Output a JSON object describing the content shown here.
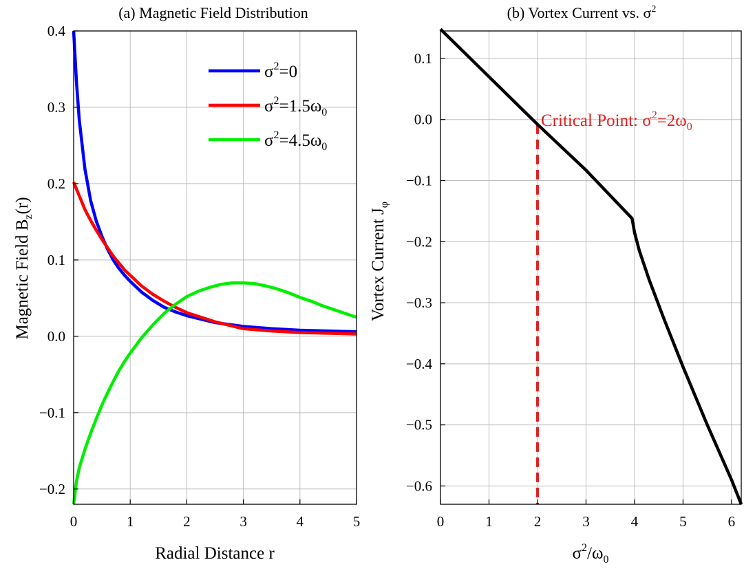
{
  "chart_data": [
    {
      "type": "line",
      "title": "(a) Magnetic Field Distribution",
      "xlabel": "Radial Distance r",
      "ylabel": "Magnetic Field B_z(r)",
      "xlim": [
        0,
        5
      ],
      "ylim": [
        -0.22,
        0.4
      ],
      "xticks": [
        0,
        1,
        2,
        3,
        4,
        5
      ],
      "yticks": [
        -0.2,
        -0.1,
        0.0,
        0.1,
        0.2,
        0.3,
        0.4
      ],
      "xtick_labels": [
        "0",
        "1",
        "2",
        "3",
        "4",
        "5"
      ],
      "ytick_labels": [
        "−0.2",
        "−0.1",
        "0.0",
        "0.1",
        "0.2",
        "0.3",
        "0.4"
      ],
      "grid": true,
      "legend_position": "top-right",
      "series": [
        {
          "name": "σ²=0",
          "name_base": "σ",
          "name_sup": "2",
          "name_rest": "=0",
          "name_sub": "",
          "color": "#0000ff",
          "x": [
            0,
            0.05,
            0.1,
            0.2,
            0.3,
            0.4,
            0.5,
            0.6,
            0.7,
            0.8,
            0.9,
            1.0,
            1.2,
            1.4,
            1.6,
            1.8,
            2.0,
            2.5,
            3.0,
            3.5,
            4.0,
            4.5,
            5.0
          ],
          "y": [
            0.4,
            0.333,
            0.283,
            0.219,
            0.178,
            0.151,
            0.131,
            0.114,
            0.1,
            0.089,
            0.08,
            0.072,
            0.058,
            0.047,
            0.038,
            0.032,
            0.027,
            0.018,
            0.013,
            0.01,
            0.008,
            0.007,
            0.006
          ]
        },
        {
          "name": "σ²=1.5ω₀",
          "name_base": "σ",
          "name_sup": "2",
          "name_rest": "=1.5ω",
          "name_sub": "0",
          "color": "#ff0000",
          "x": [
            0,
            0.1,
            0.2,
            0.3,
            0.4,
            0.5,
            0.6,
            0.7,
            0.8,
            0.9,
            1.0,
            1.2,
            1.4,
            1.6,
            1.8,
            2.0,
            2.5,
            3.0,
            3.5,
            4.0,
            4.5,
            5.0
          ],
          "y": [
            0.202,
            0.184,
            0.166,
            0.152,
            0.139,
            0.127,
            0.116,
            0.105,
            0.096,
            0.087,
            0.08,
            0.066,
            0.055,
            0.046,
            0.038,
            0.031,
            0.019,
            0.01,
            0.007,
            0.005,
            0.004,
            0.003
          ]
        },
        {
          "name": "σ²=4.5ω₀",
          "name_base": "σ",
          "name_sup": "2",
          "name_rest": "=4.5ω",
          "name_sub": "0",
          "color": "#00ee00",
          "x": [
            0,
            0.05,
            0.1,
            0.2,
            0.3,
            0.4,
            0.5,
            0.6,
            0.7,
            0.8,
            0.9,
            1.0,
            1.2,
            1.4,
            1.6,
            1.8,
            2.0,
            2.2,
            2.4,
            2.6,
            2.8,
            3.0,
            3.2,
            3.4,
            3.6,
            3.8,
            4.0,
            4.2,
            4.4,
            4.6,
            4.8,
            5.0
          ],
          "y": [
            -0.22,
            -0.19,
            -0.172,
            -0.148,
            -0.127,
            -0.108,
            -0.09,
            -0.074,
            -0.059,
            -0.045,
            -0.033,
            -0.022,
            -0.002,
            0.015,
            0.03,
            0.042,
            0.052,
            0.059,
            0.064,
            0.068,
            0.07,
            0.07,
            0.069,
            0.066,
            0.062,
            0.057,
            0.051,
            0.046,
            0.04,
            0.035,
            0.03,
            0.025
          ]
        }
      ]
    },
    {
      "type": "line",
      "title_base": "(b) Vortex Current vs. σ",
      "title_sup": "2",
      "xlabel_base": "σ",
      "xlabel_sup": "2",
      "xlabel_rest": "/ω",
      "xlabel_sub": "0",
      "ylabel_base": "Vortex Current J",
      "ylabel_sub": "φ",
      "xlim": [
        0,
        6.2
      ],
      "ylim": [
        -0.63,
        0.145
      ],
      "xticks": [
        0,
        1,
        2,
        3,
        4,
        5,
        6
      ],
      "yticks": [
        -0.6,
        -0.5,
        -0.4,
        -0.3,
        -0.2,
        -0.1,
        0.0,
        0.1
      ],
      "xtick_labels": [
        "0",
        "1",
        "2",
        "3",
        "4",
        "5",
        "6"
      ],
      "ytick_labels": [
        "−0.6",
        "−0.5",
        "−0.4",
        "−0.3",
        "−0.2",
        "−0.1",
        "0.0",
        "0.1"
      ],
      "grid": true,
      "series": [
        {
          "color": "#000000",
          "x": [
            0,
            1,
            2,
            3,
            3.95,
            4.0,
            4.1,
            4.3,
            4.6,
            5.0,
            5.5,
            6.0,
            6.2
          ],
          "y": [
            0.148,
            0.07,
            -0.008,
            -0.083,
            -0.162,
            -0.185,
            -0.215,
            -0.262,
            -0.325,
            -0.405,
            -0.5,
            -0.59,
            -0.63
          ]
        }
      ],
      "annotation": {
        "x": 2,
        "color": "#dd2222",
        "text_base": "Critical Point: σ",
        "text_sup": "2",
        "text_rest": "=2ω",
        "text_sub": "0"
      }
    }
  ]
}
